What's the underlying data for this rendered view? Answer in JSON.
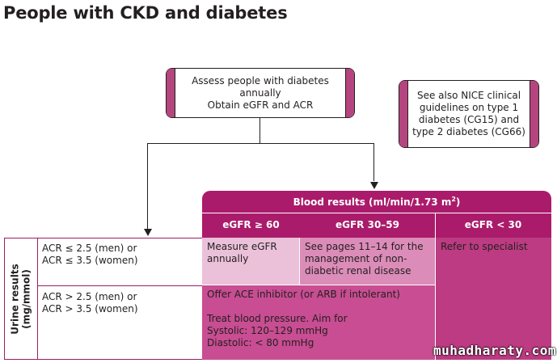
{
  "title": "People with CKD and diabetes",
  "assess_box": {
    "line1": "Assess people with diabetes",
    "line2": "annually",
    "line3": "Obtain eGFR and ACR"
  },
  "nice_box": {
    "line1": "See also NICE clinical",
    "line2": "guidelines on type 1",
    "line3": "diabetes (CG15) and",
    "line4": "type 2 diabetes (CG66)"
  },
  "blood_results": {
    "title": "Blood results (ml/min/1.73 m",
    "title_sup": "2",
    "title_end": ")",
    "columns": [
      "eGFR ≥ 60",
      "eGFR 30–59",
      "eGFR < 30"
    ]
  },
  "urine_results": {
    "label_line1": "Urine results",
    "label_line2": "(mg/mmol)",
    "rows": [
      {
        "line1": "ACR ≤ 2.5 (men) or",
        "line2": "ACR ≤ 3.5 (women)"
      },
      {
        "line1": "ACR > 2.5 (men) or",
        "line2": "ACR > 3.5 (women)"
      }
    ]
  },
  "cells": {
    "measure": {
      "line1": "Measure eGFR",
      "line2": "annually"
    },
    "see_pages": {
      "line1": "See pages 11–14 for the",
      "line2": "management of non-",
      "line3": "diabetic renal disease"
    },
    "refer": "Refer to specialist",
    "offer": {
      "line1": "Offer ACE inhibitor (or ARB if intolerant)",
      "line2": "Treat blood pressure. Aim for",
      "line3": "Systolic: 120–129 mmHg",
      "line4": "Diastolic: < 80 mmHg"
    }
  },
  "watermark": "muhadharaty.com",
  "colors": {
    "header_magenta": "#ab1b6b",
    "box_edge": "#b5457f",
    "light_pink": "#ebc1d9",
    "mid_pink": "#dc8cb9",
    "deep_pink": "#c84d92",
    "refer_pink": "#bc3b82"
  }
}
